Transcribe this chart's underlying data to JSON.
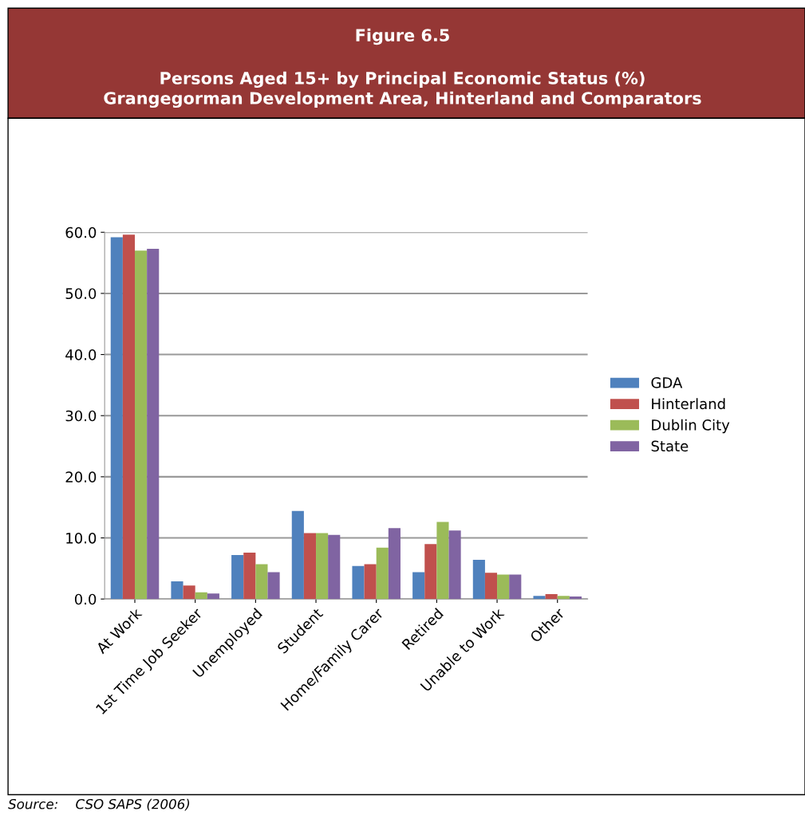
{
  "chart_data": {
    "type": "bar",
    "title": "Figure 6.5",
    "subtitle": "Persons Aged 15+ by Principal Economic Status (%)\nGrangegorman Development Area, Hinterland and Comparators",
    "categories": [
      "At Work",
      "1st Time Job Seeker",
      "Unemployed",
      "Student",
      "Home/Family Carer",
      "Retired",
      "Unable to Work",
      "Other"
    ],
    "series": [
      {
        "name": "GDA",
        "color": "#4f81bd",
        "values": [
          59.2,
          2.9,
          7.2,
          14.4,
          5.4,
          4.4,
          6.4,
          0.5
        ]
      },
      {
        "name": "Hinterland",
        "color": "#c0504d",
        "values": [
          59.6,
          2.2,
          7.6,
          10.8,
          5.7,
          9.0,
          4.3,
          0.8
        ]
      },
      {
        "name": "Dublin City",
        "color": "#9bbb59",
        "values": [
          57.0,
          1.1,
          5.7,
          10.8,
          8.4,
          12.6,
          4.0,
          0.5
        ]
      },
      {
        "name": "State",
        "color": "#8064a2",
        "values": [
          57.3,
          0.9,
          4.4,
          10.5,
          11.6,
          11.2,
          4.0,
          0.4
        ]
      }
    ],
    "ylim": [
      0,
      60
    ],
    "yticks": [
      {
        "value": 0,
        "label": "0.0"
      },
      {
        "value": 10,
        "label": "10.0"
      },
      {
        "value": 20,
        "label": "20.0"
      },
      {
        "value": 30,
        "label": "30.0"
      },
      {
        "value": 40,
        "label": "40.0"
      },
      {
        "value": 50,
        "label": "50.0"
      },
      {
        "value": 60,
        "label": "60.0"
      }
    ],
    "grid": "y",
    "legend": "right",
    "annotations": [
      "Source:    CSO SAPS (2006)"
    ]
  }
}
